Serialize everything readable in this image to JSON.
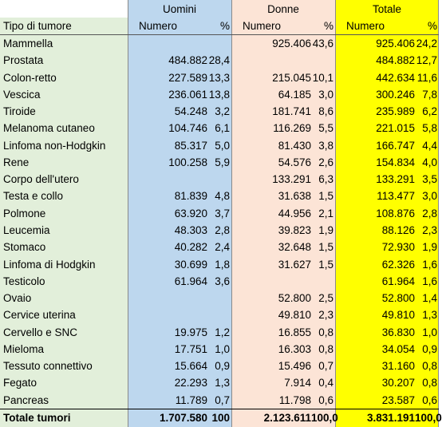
{
  "header": {
    "groups": [
      "Uomini",
      "Donne",
      "Totale"
    ],
    "first": "Tipo di tumore",
    "columns": [
      "Numero",
      "%",
      "Numero",
      "%",
      "Numero",
      "%"
    ]
  },
  "table": {
    "rows": [
      [
        "Mammella",
        null,
        null,
        "925.406",
        "43,6",
        "925.406",
        "24,2"
      ],
      [
        "Prostata",
        "484.882",
        "28,4",
        null,
        null,
        "484.882",
        "12,7"
      ],
      [
        "Colon-retto",
        "227.589",
        "13,3",
        "215.045",
        "10,1",
        "442.634",
        "11,6"
      ],
      [
        "Vescica",
        "236.061",
        "13,8",
        "64.185",
        "3,0",
        "300.246",
        "7,8"
      ],
      [
        "Tiroide",
        "54.248",
        "3,2",
        "181.741",
        "8,6",
        "235.989",
        "6,2"
      ],
      [
        "Melanoma cutaneo",
        "104.746",
        "6,1",
        "116.269",
        "5,5",
        "221.015",
        "5,8"
      ],
      [
        "Linfoma non-Hodgkin",
        "85.317",
        "5,0",
        "81.430",
        "3,8",
        "166.747",
        "4,4"
      ],
      [
        "Rene",
        "100.258",
        "5,9",
        "54.576",
        "2,6",
        "154.834",
        "4,0"
      ],
      [
        "Corpo dell'utero",
        null,
        null,
        "133.291",
        "6,3",
        "133.291",
        "3,5"
      ],
      [
        "Testa e collo",
        "81.839",
        "4,8",
        "31.638",
        "1,5",
        "113.477",
        "3,0"
      ],
      [
        "Polmone",
        "63.920",
        "3,7",
        "44.956",
        "2,1",
        "108.876",
        "2,8"
      ],
      [
        "Leucemia",
        "48.303",
        "2,8",
        "39.823",
        "1,9",
        "88.126",
        "2,3"
      ],
      [
        "Stomaco",
        "40.282",
        "2,4",
        "32.648",
        "1,5",
        "72.930",
        "1,9"
      ],
      [
        "Linfoma di Hodgkin",
        "30.699",
        "1,8",
        "31.627",
        "1,5",
        "62.326",
        "1,6"
      ],
      [
        "Testicolo",
        "61.964",
        "3,6",
        null,
        null,
        "61.964",
        "1,6"
      ],
      [
        "Ovaio",
        null,
        null,
        "52.800",
        "2,5",
        "52.800",
        "1,4"
      ],
      [
        "Cervice uterina",
        null,
        null,
        "49.810",
        "2,3",
        "49.810",
        "1,3"
      ],
      [
        "Cervello e SNC",
        "19.975",
        "1,2",
        "16.855",
        "0,8",
        "36.830",
        "1,0"
      ],
      [
        "Mieloma",
        "17.751",
        "1,0",
        "16.303",
        "0,8",
        "34.054",
        "0,9"
      ],
      [
        "Tessuto connettivo",
        "15.664",
        "0,9",
        "15.496",
        "0,7",
        "31.160",
        "0,8"
      ],
      [
        "Fegato",
        "22.293",
        "1,3",
        "7.914",
        "0,4",
        "30.207",
        "0,8"
      ],
      [
        "Pancreas",
        "11.789",
        "0,7",
        "11.798",
        "0,6",
        "23.587",
        "0,6"
      ],
      [
        "Totale tumori",
        "1.707.580",
        "100",
        "2.123.611",
        "100,0",
        "3.831.191",
        "100,0"
      ]
    ]
  }
}
